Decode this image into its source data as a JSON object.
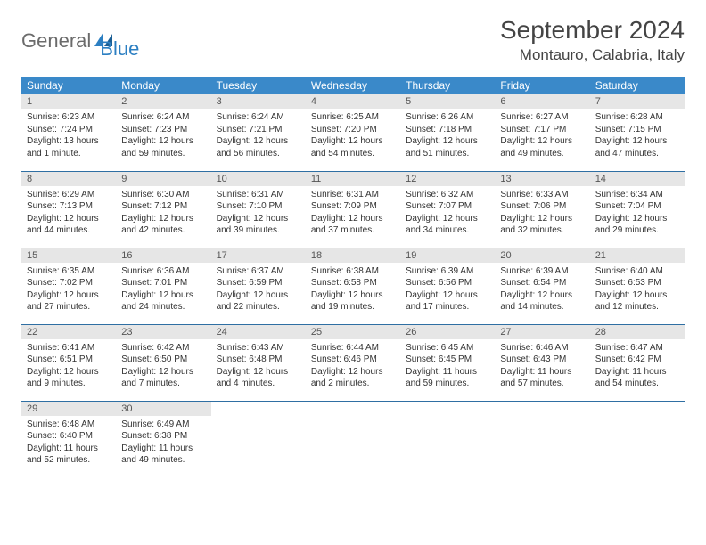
{
  "brand": {
    "part1": "General",
    "part2": "Blue"
  },
  "title": "September 2024",
  "location": "Montauro, Calabria, Italy",
  "colors": {
    "header_bg": "#3a89c9",
    "header_text": "#ffffff",
    "daynum_bg": "#e6e6e6",
    "row_border": "#2f6fa3",
    "logo_gray": "#6b6b6b",
    "logo_blue": "#2c7fc2"
  },
  "weekdays": [
    "Sunday",
    "Monday",
    "Tuesday",
    "Wednesday",
    "Thursday",
    "Friday",
    "Saturday"
  ],
  "days": [
    {
      "n": "1",
      "sr": "6:23 AM",
      "ss": "7:24 PM",
      "dl": "13 hours and 1 minute."
    },
    {
      "n": "2",
      "sr": "6:24 AM",
      "ss": "7:23 PM",
      "dl": "12 hours and 59 minutes."
    },
    {
      "n": "3",
      "sr": "6:24 AM",
      "ss": "7:21 PM",
      "dl": "12 hours and 56 minutes."
    },
    {
      "n": "4",
      "sr": "6:25 AM",
      "ss": "7:20 PM",
      "dl": "12 hours and 54 minutes."
    },
    {
      "n": "5",
      "sr": "6:26 AM",
      "ss": "7:18 PM",
      "dl": "12 hours and 51 minutes."
    },
    {
      "n": "6",
      "sr": "6:27 AM",
      "ss": "7:17 PM",
      "dl": "12 hours and 49 minutes."
    },
    {
      "n": "7",
      "sr": "6:28 AM",
      "ss": "7:15 PM",
      "dl": "12 hours and 47 minutes."
    },
    {
      "n": "8",
      "sr": "6:29 AM",
      "ss": "7:13 PM",
      "dl": "12 hours and 44 minutes."
    },
    {
      "n": "9",
      "sr": "6:30 AM",
      "ss": "7:12 PM",
      "dl": "12 hours and 42 minutes."
    },
    {
      "n": "10",
      "sr": "6:31 AM",
      "ss": "7:10 PM",
      "dl": "12 hours and 39 minutes."
    },
    {
      "n": "11",
      "sr": "6:31 AM",
      "ss": "7:09 PM",
      "dl": "12 hours and 37 minutes."
    },
    {
      "n": "12",
      "sr": "6:32 AM",
      "ss": "7:07 PM",
      "dl": "12 hours and 34 minutes."
    },
    {
      "n": "13",
      "sr": "6:33 AM",
      "ss": "7:06 PM",
      "dl": "12 hours and 32 minutes."
    },
    {
      "n": "14",
      "sr": "6:34 AM",
      "ss": "7:04 PM",
      "dl": "12 hours and 29 minutes."
    },
    {
      "n": "15",
      "sr": "6:35 AM",
      "ss": "7:02 PM",
      "dl": "12 hours and 27 minutes."
    },
    {
      "n": "16",
      "sr": "6:36 AM",
      "ss": "7:01 PM",
      "dl": "12 hours and 24 minutes."
    },
    {
      "n": "17",
      "sr": "6:37 AM",
      "ss": "6:59 PM",
      "dl": "12 hours and 22 minutes."
    },
    {
      "n": "18",
      "sr": "6:38 AM",
      "ss": "6:58 PM",
      "dl": "12 hours and 19 minutes."
    },
    {
      "n": "19",
      "sr": "6:39 AM",
      "ss": "6:56 PM",
      "dl": "12 hours and 17 minutes."
    },
    {
      "n": "20",
      "sr": "6:39 AM",
      "ss": "6:54 PM",
      "dl": "12 hours and 14 minutes."
    },
    {
      "n": "21",
      "sr": "6:40 AM",
      "ss": "6:53 PM",
      "dl": "12 hours and 12 minutes."
    },
    {
      "n": "22",
      "sr": "6:41 AM",
      "ss": "6:51 PM",
      "dl": "12 hours and 9 minutes."
    },
    {
      "n": "23",
      "sr": "6:42 AM",
      "ss": "6:50 PM",
      "dl": "12 hours and 7 minutes."
    },
    {
      "n": "24",
      "sr": "6:43 AM",
      "ss": "6:48 PM",
      "dl": "12 hours and 4 minutes."
    },
    {
      "n": "25",
      "sr": "6:44 AM",
      "ss": "6:46 PM",
      "dl": "12 hours and 2 minutes."
    },
    {
      "n": "26",
      "sr": "6:45 AM",
      "ss": "6:45 PM",
      "dl": "11 hours and 59 minutes."
    },
    {
      "n": "27",
      "sr": "6:46 AM",
      "ss": "6:43 PM",
      "dl": "11 hours and 57 minutes."
    },
    {
      "n": "28",
      "sr": "6:47 AM",
      "ss": "6:42 PM",
      "dl": "11 hours and 54 minutes."
    },
    {
      "n": "29",
      "sr": "6:48 AM",
      "ss": "6:40 PM",
      "dl": "11 hours and 52 minutes."
    },
    {
      "n": "30",
      "sr": "6:49 AM",
      "ss": "6:38 PM",
      "dl": "11 hours and 49 minutes."
    }
  ],
  "labels": {
    "sunrise": "Sunrise:",
    "sunset": "Sunset:",
    "daylight": "Daylight:"
  }
}
